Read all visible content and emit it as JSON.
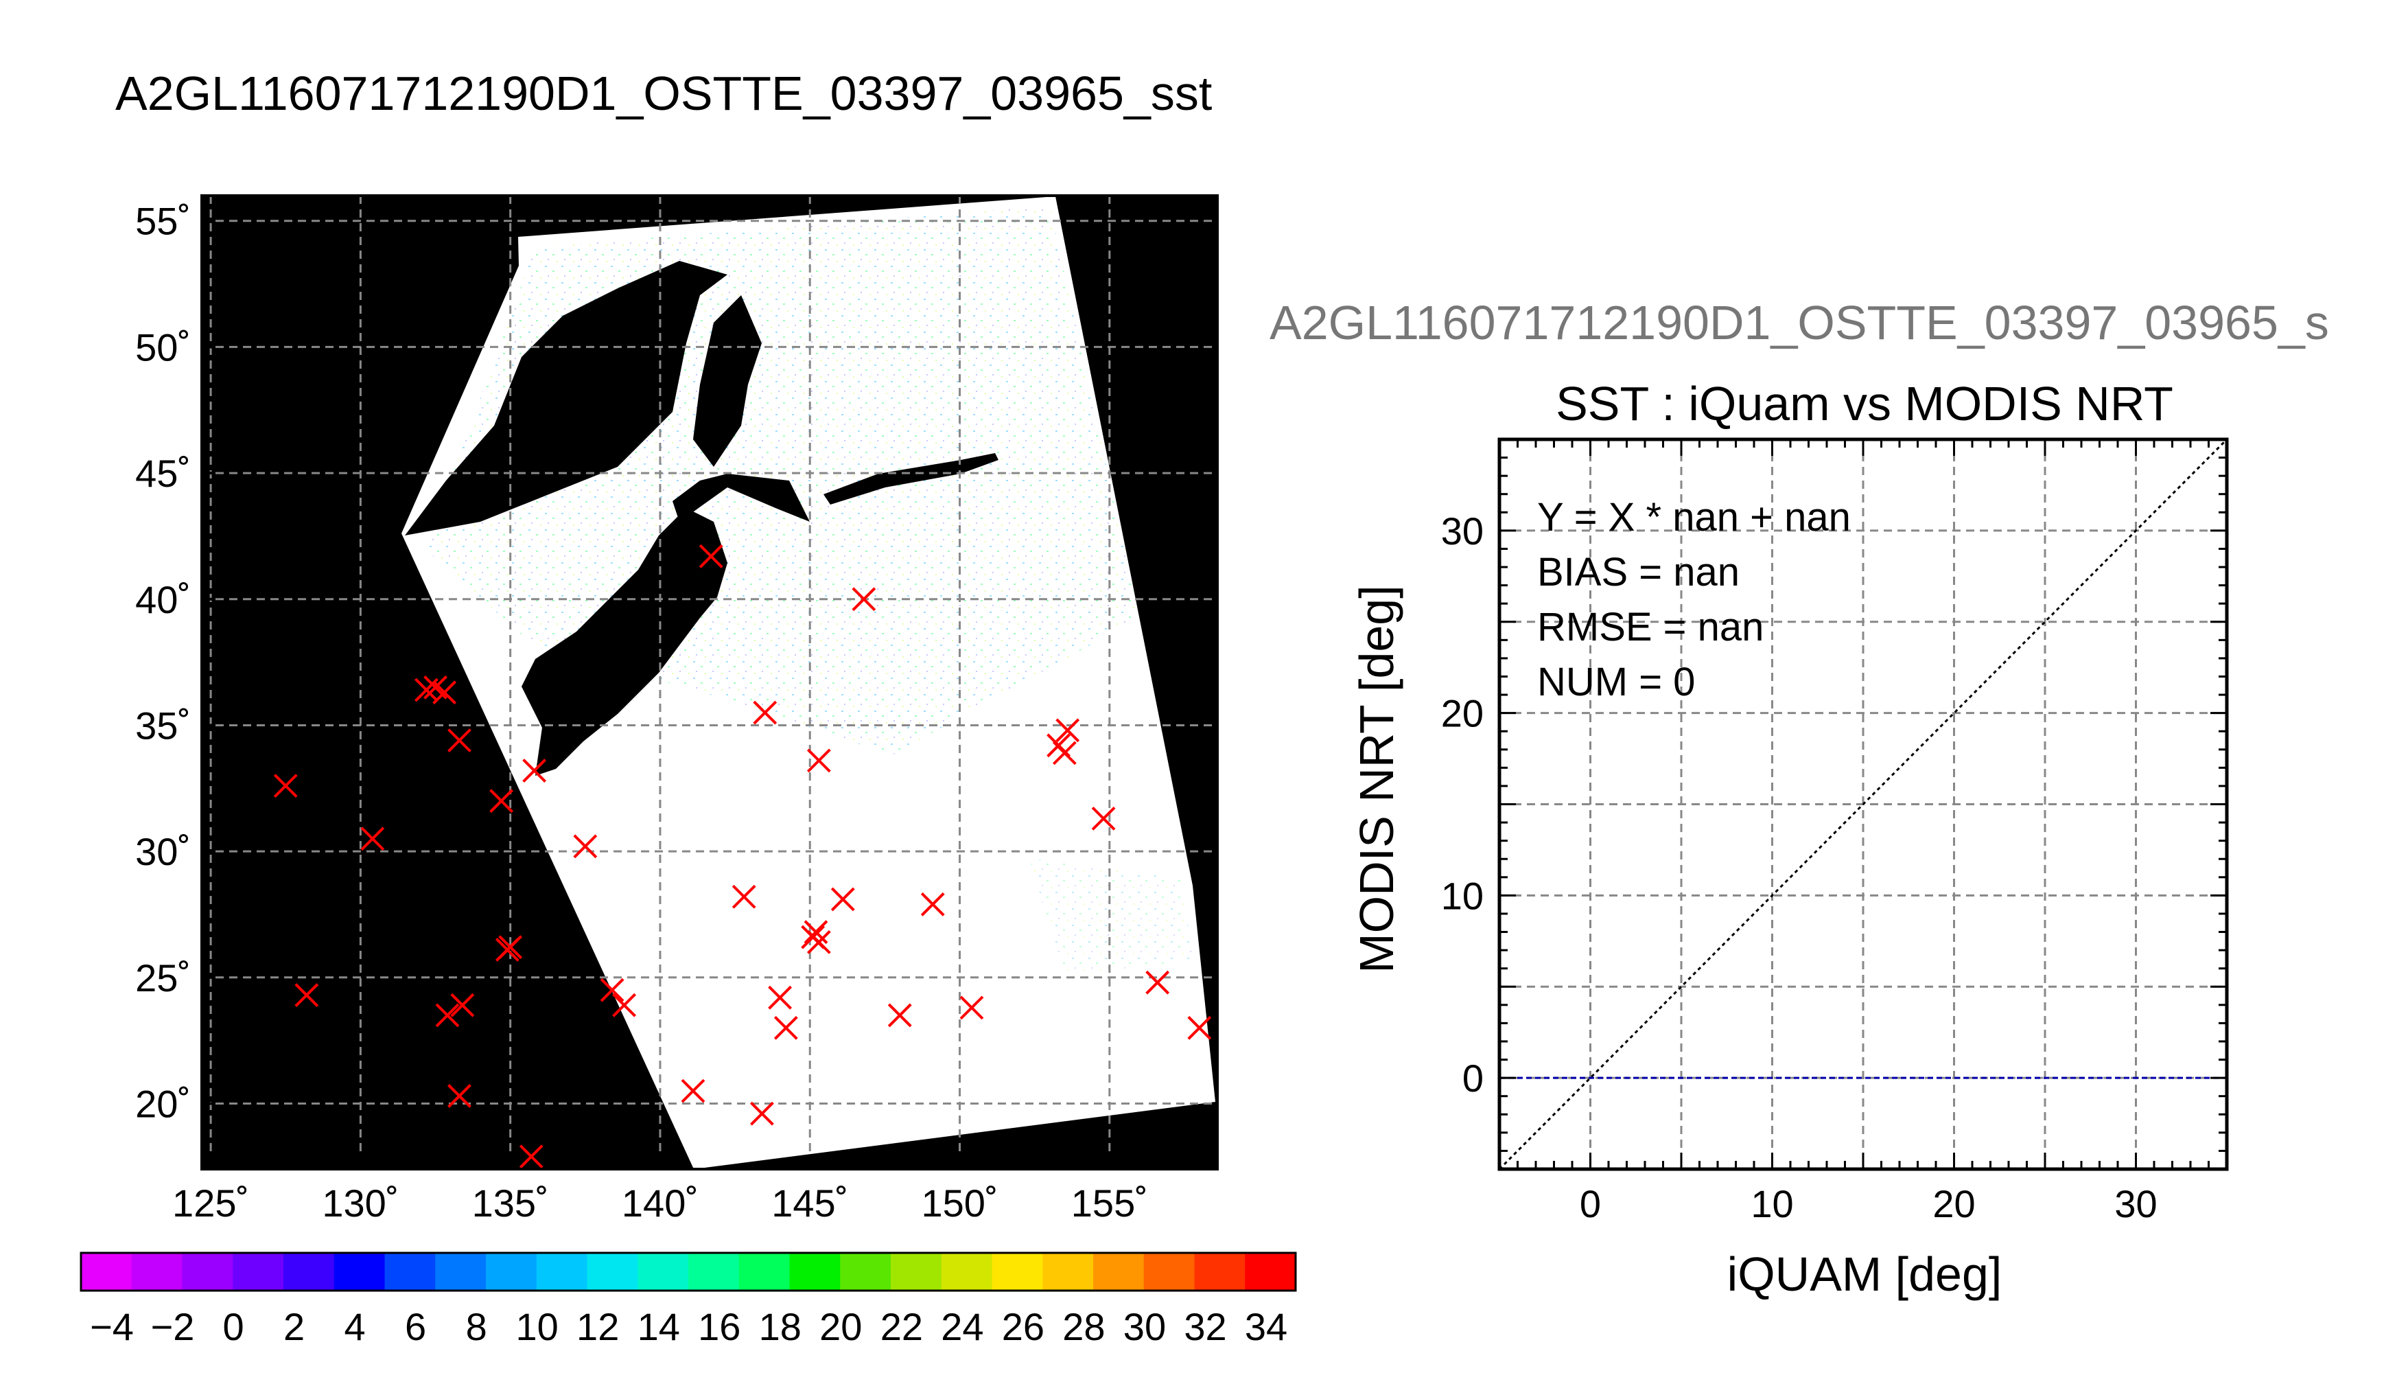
{
  "page": {
    "title": "A2GL116071712190D1_OSTTE_03397_03965_sst"
  },
  "map": {
    "lon_ticks": [
      "125˚",
      "130˚",
      "135˚",
      "140˚",
      "145˚",
      "150˚",
      "155˚"
    ],
    "lat_ticks": [
      "55˚",
      "50˚",
      "45˚",
      "40˚",
      "35˚",
      "30˚",
      "25˚",
      "20˚"
    ],
    "lon_values": [
      125,
      130,
      135,
      140,
      145,
      150,
      155
    ],
    "lat_values": [
      55,
      50,
      45,
      40,
      35,
      30,
      25,
      20
    ],
    "lon_range": [
      124.7,
      158.6
    ],
    "lat_range": [
      17.4,
      56.0
    ],
    "marker_color": "#ff0000",
    "markers": [
      [
        141.7,
        41.7
      ],
      [
        146.8,
        40.0
      ],
      [
        132.2,
        36.4
      ],
      [
        132.5,
        36.5
      ],
      [
        132.8,
        36.3
      ],
      [
        133.3,
        34.4
      ],
      [
        143.5,
        35.5
      ],
      [
        153.3,
        34.2
      ],
      [
        153.6,
        34.8
      ],
      [
        153.5,
        33.9
      ],
      [
        127.5,
        32.6
      ],
      [
        135.8,
        33.2
      ],
      [
        145.3,
        33.6
      ],
      [
        134.7,
        32.0
      ],
      [
        130.4,
        30.5
      ],
      [
        137.5,
        30.2
      ],
      [
        154.8,
        31.3
      ],
      [
        142.8,
        28.2
      ],
      [
        146.1,
        28.1
      ],
      [
        149.1,
        27.9
      ],
      [
        145.1,
        26.6
      ],
      [
        145.2,
        26.8
      ],
      [
        145.3,
        26.4
      ],
      [
        134.9,
        26.1
      ],
      [
        135.0,
        26.2
      ],
      [
        128.2,
        24.3
      ],
      [
        133.4,
        23.9
      ],
      [
        132.9,
        23.5
      ],
      [
        138.4,
        24.5
      ],
      [
        138.8,
        23.9
      ],
      [
        144.0,
        24.2
      ],
      [
        144.2,
        23.0
      ],
      [
        148.0,
        23.5
      ],
      [
        150.4,
        23.8
      ],
      [
        156.6,
        24.8
      ],
      [
        158.0,
        23.0
      ],
      [
        133.3,
        20.3
      ],
      [
        141.1,
        20.5
      ],
      [
        143.4,
        19.6
      ],
      [
        135.7,
        17.9
      ]
    ]
  },
  "colorbar": {
    "labels": [
      "−4",
      "−2",
      "0",
      "2",
      "4",
      "6",
      "8",
      "10",
      "12",
      "14",
      "16",
      "18",
      "20",
      "22",
      "24",
      "26",
      "28",
      "30",
      "32",
      "34"
    ],
    "colors": [
      "#e600ff",
      "#c300ff",
      "#9900ff",
      "#6e00ff",
      "#3c00ff",
      "#0000ff",
      "#0046ff",
      "#0078ff",
      "#00a5ff",
      "#00c8ff",
      "#00e6f0",
      "#00f5c8",
      "#00ff96",
      "#00ff5a",
      "#00f000",
      "#5ae600",
      "#a0e600",
      "#d2e600",
      "#ffe600",
      "#ffc800",
      "#ff9600",
      "#ff6400",
      "#ff3200",
      "#ff0000"
    ]
  },
  "scatter": {
    "figure_title": "A2GL116071712190D1_OSTTE_03397_03965_s",
    "chart_data": {
      "type": "scatter",
      "title": "SST : iQuam vs MODIS NRT",
      "xlabel": "iQUAM [deg]",
      "ylabel": "MODIS NRT [deg]",
      "xlim": [
        -5,
        35
      ],
      "ylim": [
        -5,
        35
      ],
      "x_ticks": [
        0,
        10,
        20,
        30
      ],
      "y_ticks": [
        0,
        10,
        20,
        30
      ],
      "grid": true,
      "series": [],
      "lines": [
        {
          "label": "one-to-one",
          "style": "dotted",
          "color": "#000000",
          "x": [
            -5,
            35
          ],
          "y": [
            -5,
            35
          ]
        },
        {
          "label": "zero-line",
          "style": "dashed",
          "color": "#0000aa",
          "x": [
            -5,
            35
          ],
          "y": [
            0,
            0
          ]
        }
      ]
    },
    "stats": {
      "regression": "Y = X * nan + nan",
      "bias": "BIAS = nan",
      "rmse": "RMSE = nan",
      "num": "NUM = 0"
    }
  }
}
